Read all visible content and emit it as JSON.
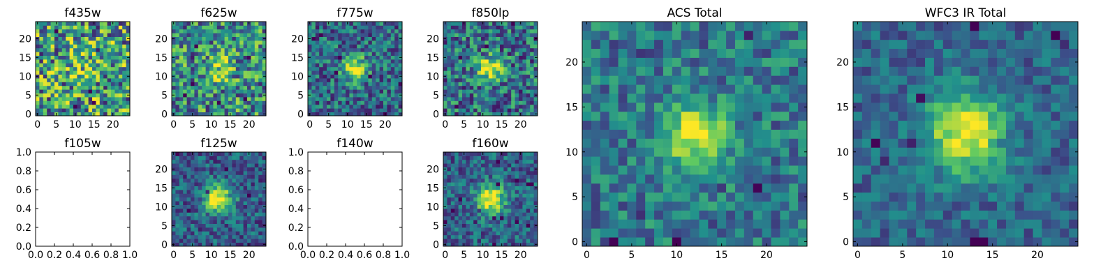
{
  "chart_data": [
    {
      "type": "heatmap",
      "title": "f435w",
      "empty": false,
      "xticks": [
        "0",
        "5",
        "10",
        "15",
        "20"
      ],
      "yticks": [
        "0",
        "5",
        "10",
        "15",
        "20"
      ],
      "xlim": [
        -0.5,
        24.5
      ],
      "ylim": [
        -0.5,
        24.5
      ],
      "grid_size": 25,
      "source": {
        "amp": 0.15,
        "background": 0.55,
        "noise": 0.45,
        "sigma": 3.0,
        "seed": 11
      }
    },
    {
      "type": "heatmap",
      "title": "f625w",
      "empty": false,
      "xticks": [
        "0",
        "5",
        "10",
        "15",
        "20"
      ],
      "yticks": [
        "0",
        "5",
        "10",
        "15",
        "20"
      ],
      "xlim": [
        -0.5,
        24.5
      ],
      "ylim": [
        -0.5,
        24.5
      ],
      "grid_size": 25,
      "source": {
        "amp": 0.35,
        "background": 0.5,
        "noise": 0.38,
        "sigma": 2.5,
        "seed": 23
      }
    },
    {
      "type": "heatmap",
      "title": "f775w",
      "empty": false,
      "xticks": [
        "0",
        "5",
        "10",
        "15",
        "20"
      ],
      "yticks": [
        "0",
        "5",
        "10",
        "15",
        "20"
      ],
      "xlim": [
        -0.5,
        24.5
      ],
      "ylim": [
        -0.5,
        24.5
      ],
      "grid_size": 25,
      "source": {
        "amp": 0.65,
        "background": 0.35,
        "noise": 0.28,
        "sigma": 2.3,
        "seed": 37
      }
    },
    {
      "type": "heatmap",
      "title": "f850lp",
      "empty": false,
      "xticks": [
        "0",
        "5",
        "10",
        "15",
        "20"
      ],
      "yticks": [
        "0",
        "5",
        "10",
        "15",
        "20"
      ],
      "xlim": [
        -0.5,
        24.5
      ],
      "ylim": [
        -0.5,
        24.5
      ],
      "grid_size": 25,
      "source": {
        "amp": 0.6,
        "background": 0.38,
        "noise": 0.32,
        "sigma": 2.3,
        "seed": 41
      }
    },
    {
      "type": "heatmap",
      "title": "f105w",
      "empty": true,
      "xticks": [
        "0.0",
        "0.2",
        "0.4",
        "0.6",
        "0.8",
        "1.0"
      ],
      "yticks": [
        "0.0",
        "0.2",
        "0.4",
        "0.6",
        "0.8",
        "1.0"
      ],
      "xlim": [
        0,
        1
      ],
      "ylim": [
        0,
        1
      ]
    },
    {
      "type": "heatmap",
      "title": "f125w",
      "empty": false,
      "xticks": [
        "0",
        "5",
        "10",
        "15",
        "20"
      ],
      "yticks": [
        "0",
        "5",
        "10",
        "15",
        "20"
      ],
      "xlim": [
        -0.5,
        24.5
      ],
      "ylim": [
        -0.5,
        24.5
      ],
      "grid_size": 25,
      "source": {
        "amp": 0.75,
        "background": 0.3,
        "noise": 0.22,
        "sigma": 2.6,
        "seed": 53
      }
    },
    {
      "type": "heatmap",
      "title": "f140w",
      "empty": true,
      "xticks": [
        "0.0",
        "0.2",
        "0.4",
        "0.6",
        "0.8",
        "1.0"
      ],
      "yticks": [
        "0.0",
        "0.2",
        "0.4",
        "0.6",
        "0.8",
        "1.0"
      ],
      "xlim": [
        0,
        1
      ],
      "ylim": [
        0,
        1
      ]
    },
    {
      "type": "heatmap",
      "title": "f160w",
      "empty": false,
      "xticks": [
        "0",
        "5",
        "10",
        "15",
        "20"
      ],
      "yticks": [
        "0",
        "5",
        "10",
        "15",
        "20"
      ],
      "xlim": [
        -0.5,
        24.5
      ],
      "ylim": [
        -0.5,
        24.5
      ],
      "grid_size": 25,
      "source": {
        "amp": 0.75,
        "background": 0.32,
        "noise": 0.22,
        "sigma": 2.6,
        "seed": 67
      }
    },
    {
      "type": "heatmap",
      "title": "ACS Total",
      "empty": false,
      "xticks": [
        "0",
        "5",
        "10",
        "15",
        "20"
      ],
      "yticks": [
        "0",
        "5",
        "10",
        "15",
        "20"
      ],
      "xlim": [
        -0.5,
        24.5
      ],
      "ylim": [
        -0.5,
        24.5
      ],
      "grid_size": 25,
      "source": {
        "amp": 0.62,
        "background": 0.4,
        "noise": 0.22,
        "sigma": 2.4,
        "seed": 79
      }
    },
    {
      "type": "heatmap",
      "title": "WFC3 IR Total",
      "empty": false,
      "xticks": [
        "0",
        "5",
        "10",
        "15",
        "20"
      ],
      "yticks": [
        "0",
        "5",
        "10",
        "15",
        "20"
      ],
      "xlim": [
        -0.5,
        24.5
      ],
      "ylim": [
        -0.5,
        24.5
      ],
      "grid_size": 25,
      "source": {
        "amp": 0.68,
        "background": 0.33,
        "noise": 0.16,
        "sigma": 3.0,
        "seed": 97
      }
    }
  ],
  "colormap": [
    "#440154",
    "#3b528b",
    "#21918c",
    "#5ec962",
    "#fde725"
  ]
}
